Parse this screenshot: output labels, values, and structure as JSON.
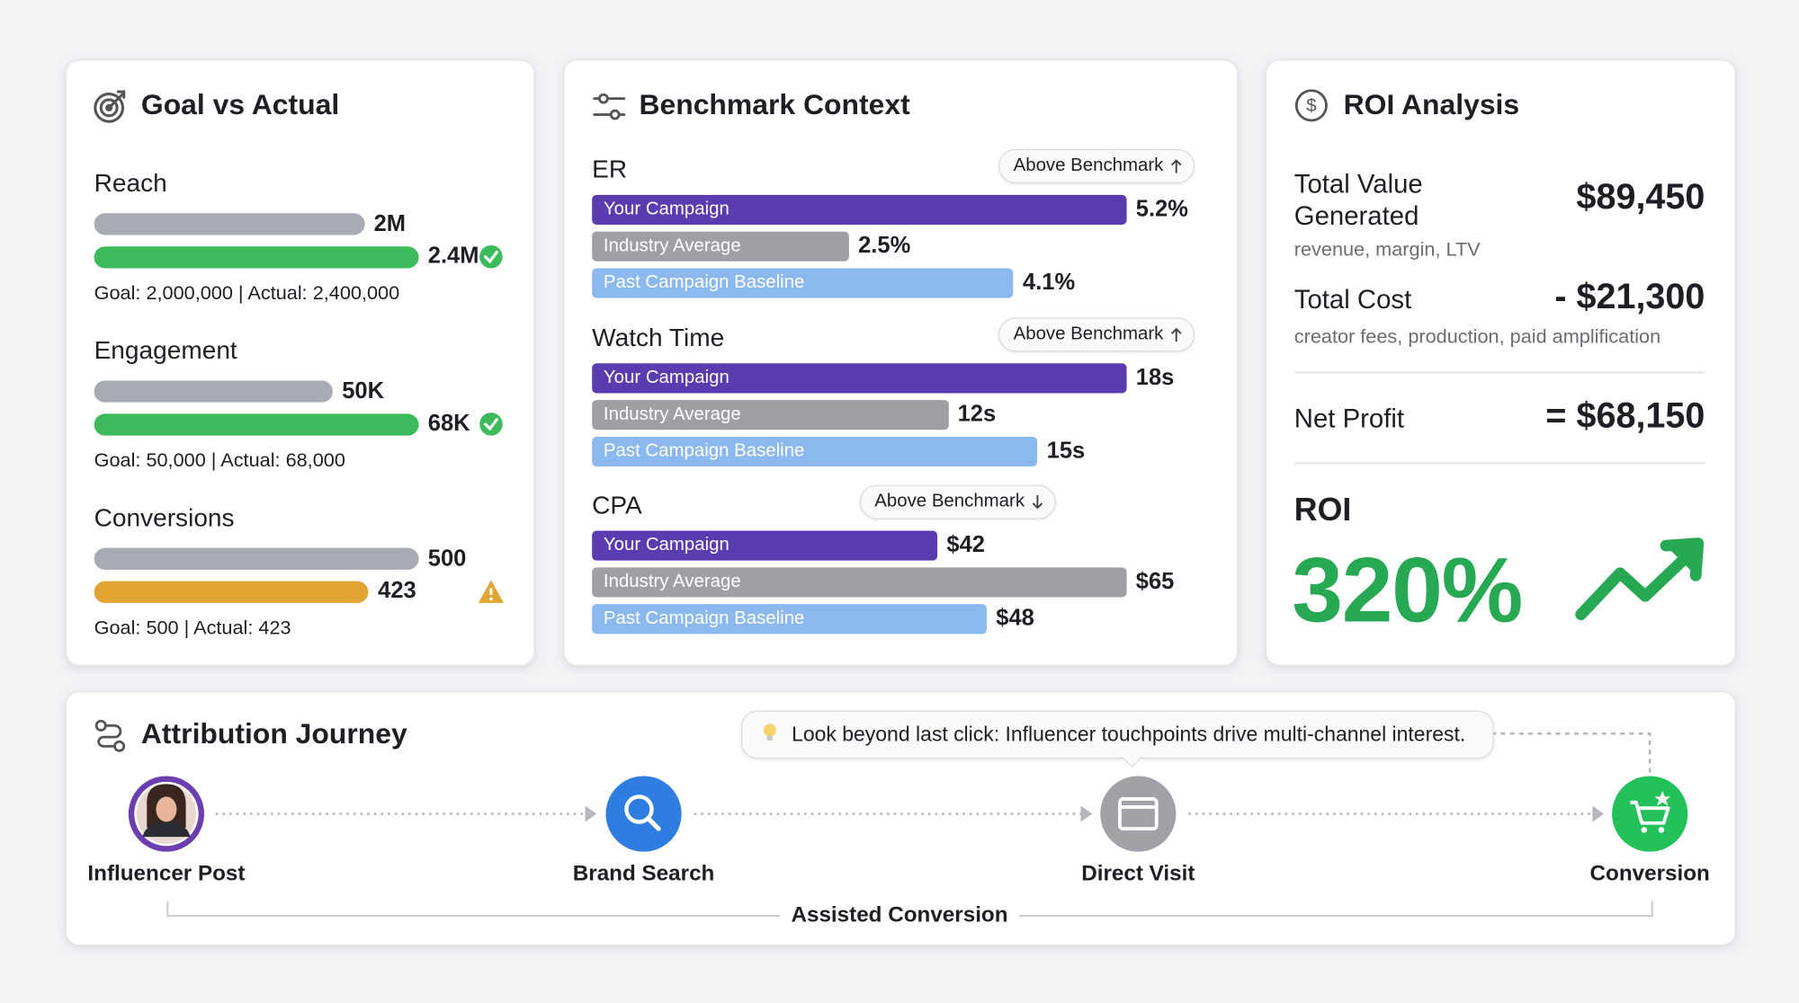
{
  "goal_vs_actual": {
    "title": "Goal vs Actual",
    "colors": {
      "goal": "#a9abb3",
      "met": "#3dbb5c",
      "missed": "#e3a532"
    },
    "metrics": [
      {
        "name": "Reach",
        "goal": 2000000,
        "goal_label": "2M",
        "actual": 2400000,
        "actual_label": "2.4M",
        "status": "met",
        "summary": "Goal: 2,000,000 | Actual: 2,400,000"
      },
      {
        "name": "Engagement",
        "goal": 50000,
        "goal_label": "50K",
        "actual": 68000,
        "actual_label": "68K",
        "status": "met",
        "summary": "Goal: 50,000 | Actual: 68,000"
      },
      {
        "name": "Conversions",
        "goal": 500,
        "goal_label": "500",
        "actual": 423,
        "actual_label": "423",
        "status": "missed",
        "summary": "Goal: 500 | Actual: 423"
      }
    ]
  },
  "benchmark": {
    "title": "Benchmark Context",
    "groups": [
      {
        "name": "ER",
        "badge": "Above Benchmark",
        "badge_direction": "up",
        "series": [
          {
            "name": "Your Campaign",
            "color": "#5b3bb0",
            "value": 5.2,
            "value_label": "5.2%"
          },
          {
            "name": "Industry Average",
            "color": "#9fa0a6",
            "value": 2.5,
            "value_label": "2.5%"
          },
          {
            "name": "Past Campaign Baseline",
            "color": "#8ab8ef",
            "value": 4.1,
            "value_label": "4.1%"
          }
        ]
      },
      {
        "name": "Watch Time",
        "badge": "Above Benchmark",
        "badge_direction": "up",
        "series": [
          {
            "name": "Your Campaign",
            "color": "#5b3bb0",
            "value": 18,
            "value_label": "18s"
          },
          {
            "name": "Industry Average",
            "color": "#9fa0a6",
            "value": 12,
            "value_label": "12s"
          },
          {
            "name": "Past Campaign Baseline",
            "color": "#8ab8ef",
            "value": 15,
            "value_label": "15s"
          }
        ]
      },
      {
        "name": "CPA",
        "badge": "Above Benchmark",
        "badge_direction": "down",
        "series": [
          {
            "name": "Your Campaign",
            "color": "#5b3bb0",
            "value": 42,
            "value_label": "$42"
          },
          {
            "name": "Industry Average",
            "color": "#9fa0a6",
            "value": 65,
            "value_label": "$65"
          },
          {
            "name": "Past Campaign Baseline",
            "color": "#8ab8ef",
            "value": 48,
            "value_label": "$48"
          }
        ]
      }
    ]
  },
  "roi": {
    "title": "ROI Analysis",
    "rows": [
      {
        "label": "Total Value Generated",
        "value": "$89,450",
        "note": "revenue, margin, LTV"
      },
      {
        "label": "Total Cost",
        "value": "- $21,300",
        "note": "creator fees, production, paid amplification"
      },
      {
        "label": "Net Profit",
        "value": "= $68,150"
      }
    ],
    "roi_label": "ROI",
    "roi_value": "320%"
  },
  "attribution": {
    "title": "Attribution Journey",
    "tip": "Look beyond last click: Influencer touchpoints drive multi-channel interest.",
    "nodes": [
      "Influencer Post",
      "Brand Search",
      "Direct Visit",
      "Conversion"
    ],
    "bracket_label": "Assisted Conversion"
  }
}
